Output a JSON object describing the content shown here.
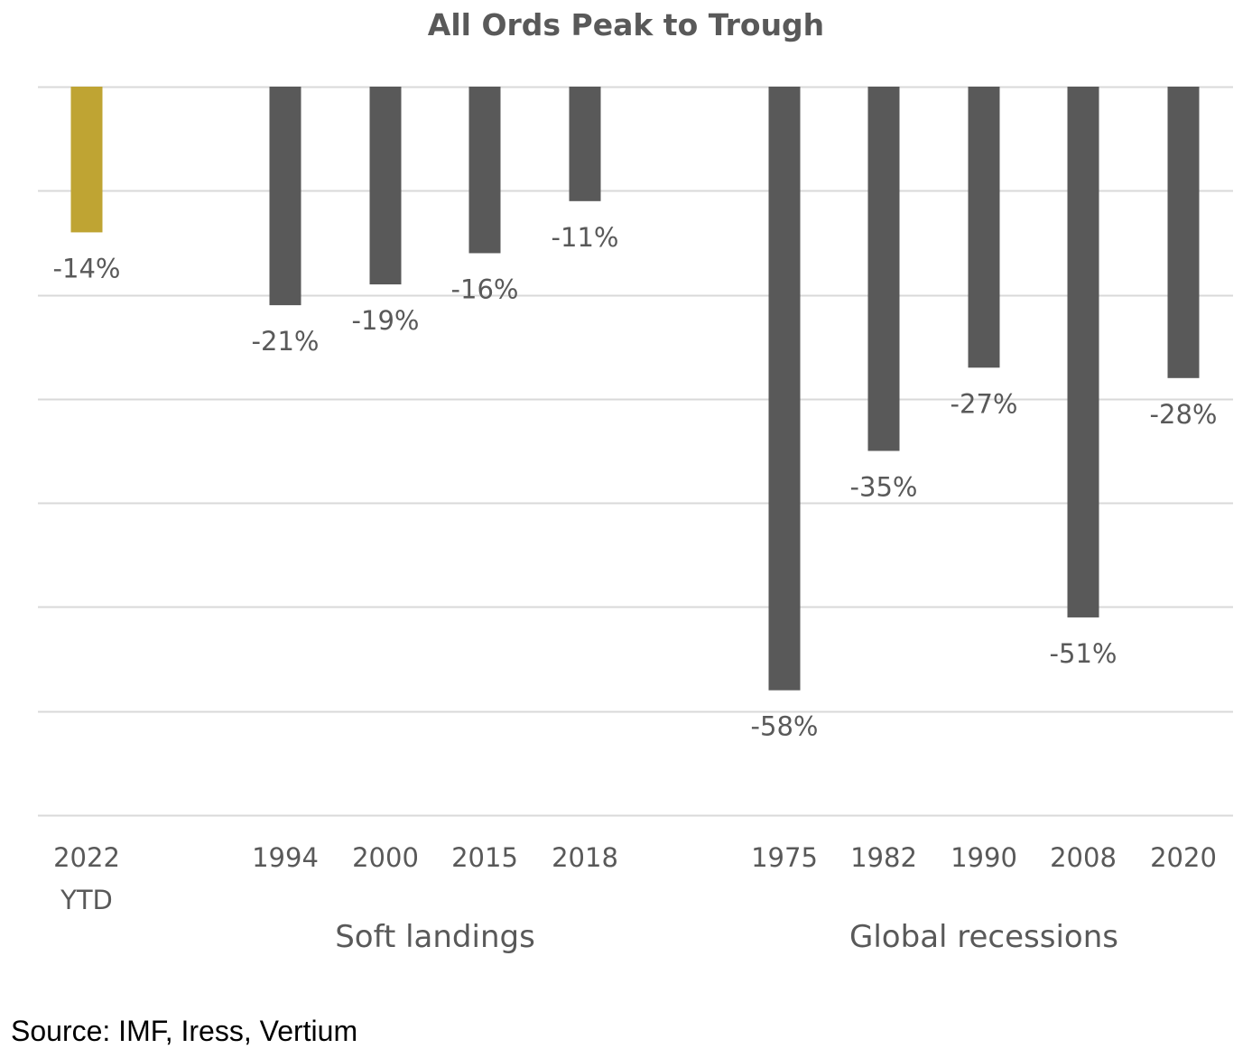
{
  "colors": {
    "highlight_bar": "#BFA433",
    "bar": "#595959",
    "gridline": "#D9D9D9",
    "label_text": "#595959",
    "title_text": "#595959"
  },
  "source_note": "Source: IMF, Iress, Vertium",
  "chart_data": {
    "type": "bar",
    "title": "All Ords Peak to Trough",
    "xlabel": "",
    "ylabel": "",
    "ylim": [
      -70,
      0
    ],
    "grid": true,
    "legend": "none",
    "categories": [
      [
        "2022",
        "YTD"
      ],
      [
        "1994"
      ],
      [
        "2000"
      ],
      [
        "2015"
      ],
      [
        "2018"
      ],
      [
        "1975"
      ],
      [
        "1982"
      ],
      [
        "1990"
      ],
      [
        "2008"
      ],
      [
        "2020"
      ]
    ],
    "values": [
      -14,
      -21,
      -19,
      -16,
      -11,
      -58,
      -35,
      -27,
      -51,
      -28
    ],
    "data_labels": [
      "-14%",
      "-21%",
      "-19%",
      "-16%",
      "-11%",
      "-58%",
      "-35%",
      "-27%",
      "-51%",
      "-28%"
    ],
    "highlighted": [
      true,
      false,
      false,
      false,
      false,
      false,
      false,
      false,
      false,
      false
    ],
    "groups": [
      {
        "label": "",
        "members": [
          0
        ]
      },
      {
        "label": "Soft landings",
        "members": [
          1,
          2,
          3,
          4
        ]
      },
      {
        "label": "Global recessions",
        "members": [
          5,
          6,
          7,
          8,
          9
        ]
      }
    ]
  }
}
